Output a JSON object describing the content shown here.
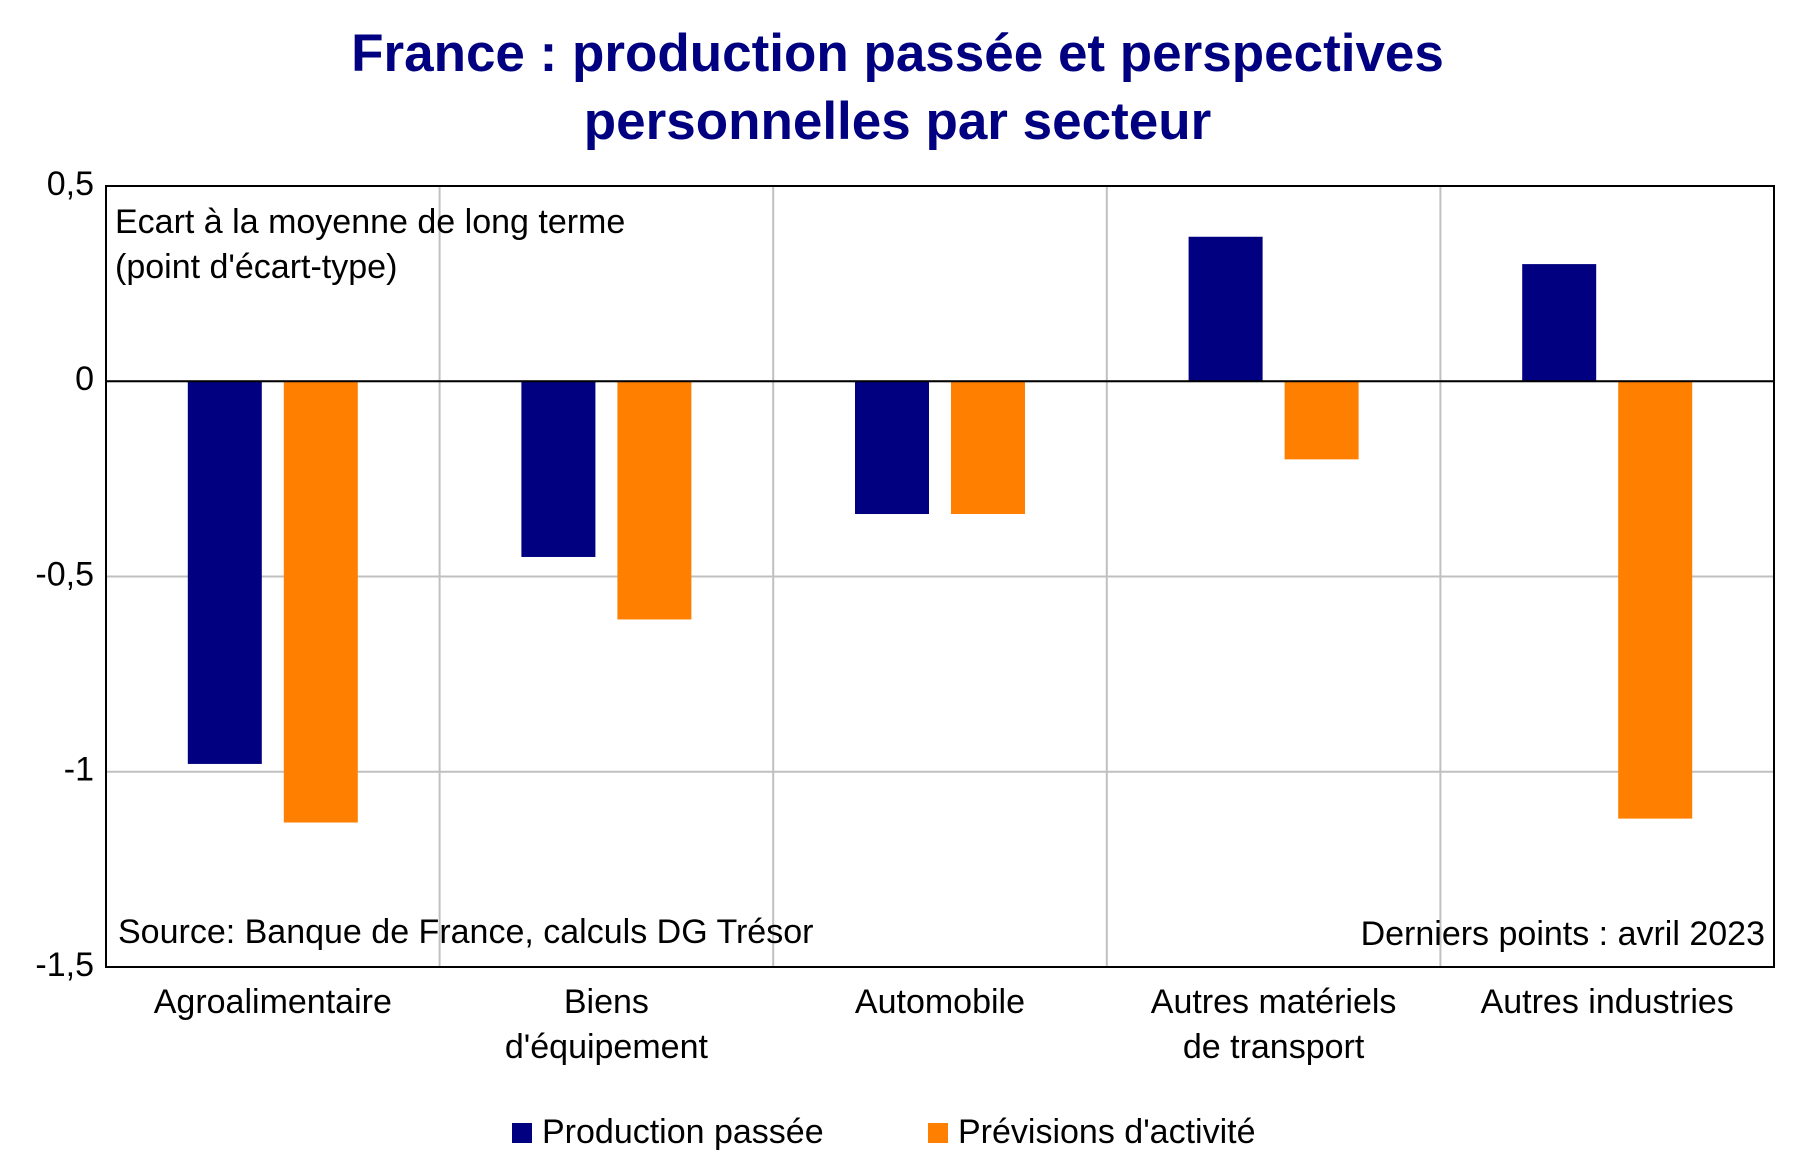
{
  "chart_data": {
    "type": "bar",
    "title": "France : production passée et perspectives\npersonnelles par secteur",
    "annotations": [
      "Ecart à la moyenne de long terme\n(point d'écart-type)"
    ],
    "source": "Source: Banque de France, calculs DG Trésor",
    "note": "Derniers points : avril 2023",
    "categories": [
      "Agroalimentaire",
      "Biens\nd'équipement",
      "Automobile",
      "Autres matériels\nde transport",
      "Autres industries"
    ],
    "series": [
      {
        "name": "Production passée",
        "color": "#000080",
        "values": [
          -0.98,
          -0.45,
          -0.34,
          0.37,
          0.3
        ]
      },
      {
        "name": "Prévisions d'activité",
        "color": "#ff7f00",
        "values": [
          -1.13,
          -0.61,
          -0.34,
          -0.2,
          -1.12
        ]
      }
    ],
    "ylim": [
      -1.5,
      0.5
    ],
    "yticks": [
      {
        "value": -1.5,
        "label": "-1,5"
      },
      -1,
      {
        "value": -0.5,
        "label": "-0,5"
      },
      0,
      {
        "value": 0.5,
        "label": "0,5"
      }
    ],
    "grid": true
  }
}
